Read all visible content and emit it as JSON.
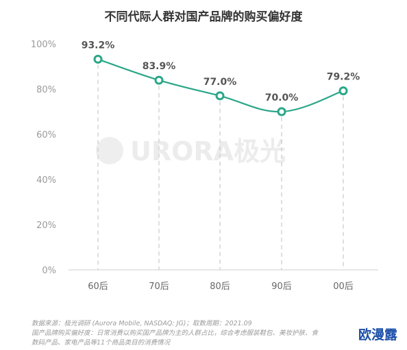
{
  "chart_data": {
    "type": "line",
    "title": "不同代际人群对国产品牌的购买偏好度",
    "categories": [
      "60后",
      "70后",
      "80后",
      "90后",
      "00后"
    ],
    "values": [
      93.2,
      83.9,
      77.0,
      70.0,
      79.2
    ],
    "data_labels": [
      "93.2%",
      "83.9%",
      "77.0%",
      "70.0%",
      "79.2%"
    ],
    "ylim": [
      0,
      100
    ],
    "yticks": [
      0,
      20,
      40,
      60,
      80,
      100
    ],
    "ytick_labels": [
      "0%",
      "20%",
      "40%",
      "60%",
      "80%",
      "100%"
    ],
    "xlabel": "",
    "ylabel": "",
    "line_color": "#2aa688",
    "grid": false,
    "category_guides": "dashed"
  },
  "watermark": "URORA极光",
  "notes": {
    "line1": "数据来源：极光调研 (Aurora Mobile, NASDAQ: JG)；取数周期：2021.09",
    "line2": "国产品牌购买偏好度：日常消费以购买国产品牌为主的人群占比，综合考虑服装鞋包、美妆护肤、食",
    "line3": "数码产品、家电产品等11个商品类目的消费情况"
  },
  "badge": "欧漫露"
}
